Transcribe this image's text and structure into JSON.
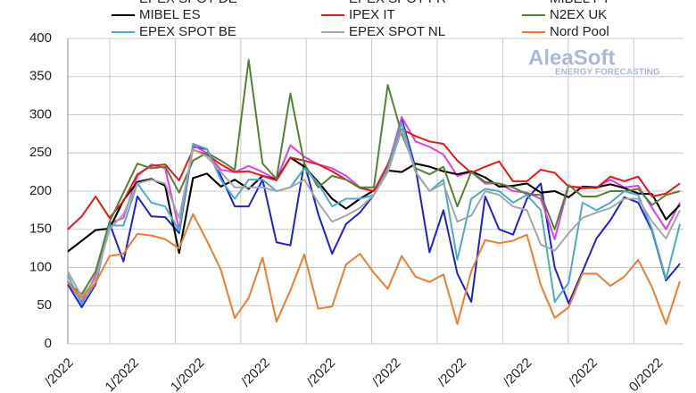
{
  "chart_data": {
    "type": "line",
    "watermark": {
      "brand": "AleaSoft",
      "tagline": "ENERGY FORECASTING"
    },
    "x_labels": [
      "/2022",
      "1/2022",
      "1/2022",
      "/2022",
      "/2022",
      "/2022",
      "/2022",
      "/2022",
      "/2022",
      "0/2022",
      "/2022"
    ],
    "ylim": [
      0,
      400
    ],
    "yticks": [
      0,
      50,
      100,
      150,
      200,
      250,
      300,
      350,
      400
    ],
    "grid": true,
    "series": [
      {
        "name": "EPEX SPOT DE",
        "color": "#1f1fd6",
        "values": [
          78,
          48,
          78,
          158,
          108,
          193,
          167,
          166,
          145,
          258,
          255,
          220,
          180,
          180,
          215,
          133,
          129,
          237,
          170,
          118,
          157,
          172,
          195,
          227,
          295,
          230,
          120,
          175,
          92,
          55,
          193,
          150,
          143,
          190,
          210,
          100,
          53,
          95,
          138,
          162,
          192,
          185,
          148,
          83,
          105
        ]
      },
      {
        "name": "EPEX SPOT FR",
        "color": "#e040e0",
        "values": [
          82,
          55,
          90,
          158,
          165,
          220,
          235,
          230,
          150,
          260,
          250,
          228,
          225,
          233,
          225,
          215,
          260,
          245,
          235,
          230,
          220,
          205,
          200,
          232,
          297,
          265,
          258,
          248,
          220,
          225,
          210,
          210,
          200,
          198,
          190,
          137,
          207,
          203,
          205,
          215,
          205,
          207,
          178,
          150,
          185
        ]
      },
      {
        "name": "MIBEL PT",
        "color": "#7a3b10",
        "values": [
          121,
          135,
          149,
          151,
          188,
          212,
          216,
          207,
          119,
          217,
          223,
          206,
          215,
          203,
          220,
          215,
          244,
          232,
          212,
          190,
          177,
          190,
          201,
          227,
          225,
          236,
          232,
          226,
          222,
          226,
          218,
          206,
          207,
          210,
          198,
          200,
          192,
          206,
          205,
          209,
          204,
          197,
          196,
          163,
          182
        ]
      },
      {
        "name": "MIBEL ES",
        "color": "#000000",
        "values": [
          121,
          135,
          149,
          151,
          188,
          212,
          216,
          207,
          119,
          217,
          223,
          206,
          215,
          203,
          220,
          215,
          244,
          232,
          212,
          190,
          177,
          190,
          201,
          227,
          225,
          236,
          232,
          226,
          222,
          226,
          218,
          206,
          207,
          210,
          198,
          200,
          192,
          206,
          205,
          209,
          204,
          197,
          196,
          163,
          182
        ]
      },
      {
        "name": "IPEX IT",
        "color": "#e81818",
        "values": [
          150,
          167,
          193,
          165,
          187,
          222,
          233,
          235,
          214,
          254,
          248,
          235,
          225,
          226,
          220,
          214,
          244,
          240,
          235,
          226,
          215,
          204,
          200,
          235,
          281,
          272,
          265,
          262,
          240,
          224,
          232,
          239,
          213,
          213,
          228,
          224,
          206,
          205,
          204,
          219,
          213,
          219,
          193,
          197,
          210
        ]
      },
      {
        "name": "N2EX UK",
        "color": "#548235",
        "values": [
          80,
          65,
          95,
          160,
          198,
          236,
          230,
          232,
          198,
          240,
          250,
          240,
          228,
          372,
          236,
          216,
          328,
          236,
          205,
          220,
          215,
          205,
          205,
          339,
          275,
          230,
          222,
          232,
          180,
          225,
          212,
          210,
          205,
          196,
          195,
          150,
          208,
          193,
          193,
          200,
          200,
          203,
          182,
          195,
          200
        ]
      },
      {
        "name": "EPEX SPOT BE",
        "color": "#4bacc6",
        "values": [
          90,
          52,
          80,
          155,
          155,
          210,
          185,
          180,
          148,
          262,
          255,
          215,
          190,
          215,
          215,
          200,
          205,
          230,
          210,
          180,
          190,
          190,
          195,
          230,
          290,
          225,
          200,
          215,
          110,
          190,
          203,
          200,
          185,
          195,
          175,
          55,
          80,
          185,
          175,
          185,
          200,
          195,
          150,
          85,
          157
        ]
      },
      {
        "name": "EPEX SPOT NL",
        "color": "#a6a6a6",
        "values": [
          95,
          62,
          85,
          150,
          170,
          210,
          215,
          210,
          165,
          255,
          245,
          225,
          205,
          205,
          205,
          200,
          205,
          215,
          185,
          160,
          168,
          178,
          195,
          225,
          280,
          225,
          200,
          210,
          160,
          168,
          200,
          195,
          180,
          175,
          130,
          122,
          145,
          165,
          172,
          178,
          190,
          190,
          160,
          138,
          175
        ]
      },
      {
        "name": "Nord Pool",
        "color": "#ed7d31",
        "values": [
          80,
          60,
          80,
          115,
          118,
          144,
          142,
          137,
          125,
          170,
          135,
          97,
          34,
          60,
          113,
          29,
          70,
          117,
          46,
          49,
          104,
          118,
          93,
          72,
          115,
          88,
          81,
          91,
          26,
          95,
          136,
          132,
          135,
          143,
          77,
          34,
          48,
          92,
          92,
          76,
          88,
          110,
          74,
          26,
          82
        ]
      }
    ]
  }
}
